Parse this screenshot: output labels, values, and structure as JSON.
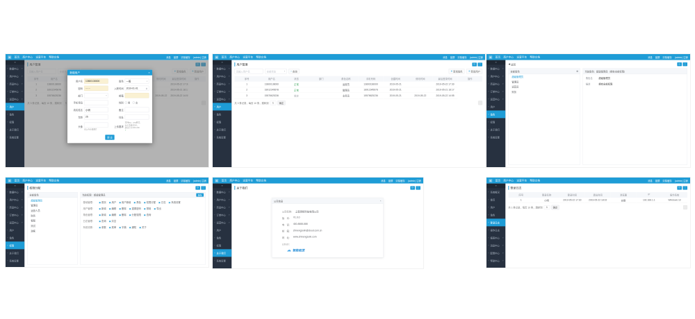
{
  "colors": {
    "accent": "#1e9cd6",
    "sidebar_bg": "#273140",
    "status_ok": "#3aa35a",
    "status_off": "#a0a4aa"
  },
  "icons": {
    "menu": "▤",
    "collapse": "≡",
    "bullet": "▪",
    "caret": "▸",
    "dropdown": "▾",
    "search": "⌕",
    "plus": "⊕",
    "refresh": "⟳",
    "fullscreen": "⛶",
    "edit": "✎",
    "delete": "⊘",
    "close": "×",
    "back": "◀",
    "grid": "▦",
    "calendar": "▦",
    "check": "✓",
    "checkbox": "▣",
    "cloud": "☁"
  },
  "navbar": {
    "left": [
      "首页",
      "商户中心",
      "运营平台",
      "帮助文档"
    ],
    "right": [
      "消息",
      "锁屏",
      "清除缓存",
      "(admin) 注销"
    ]
  },
  "sidebars": {
    "main": [
      {
        "label": "数据中心",
        "group": true
      },
      {
        "label": "用户中心",
        "group": true
      },
      {
        "label": "商品中心",
        "group": true
      },
      {
        "label": "订单中心",
        "group": true
      },
      {
        "label": "运营中心",
        "group": true
      },
      {
        "label": "用户"
      },
      {
        "label": "角色"
      },
      {
        "label": "权限"
      },
      {
        "label": "关于我们"
      },
      {
        "label": "系统设置"
      }
    ],
    "log": [
      {
        "label": "系统概况"
      },
      {
        "label": "首页"
      },
      {
        "label": "用户"
      },
      {
        "label": "角色"
      },
      {
        "label": "登录日志"
      },
      {
        "label": "操作日志"
      },
      {
        "label": "报表中心",
        "group": true
      },
      {
        "label": "消息中心",
        "group": true
      },
      {
        "label": "配置中心",
        "group": true
      },
      {
        "label": "帮助中心",
        "group": true
      }
    ]
  },
  "user_page": {
    "title": "用户管理",
    "search_placeholder": "请输入用户名",
    "status_select": "全部状态",
    "search_button": "查询",
    "add_buttons": [
      "新增角色",
      "新增用户"
    ],
    "table": {
      "columns": [
        "序号",
        "用户名",
        "状态",
        "部门",
        "角色名称",
        "手机号码",
        "创建时间",
        "修改时间",
        "最后登录时间",
        "操作"
      ],
      "rows": [
        {
          "cells": [
            "1",
            "13800138000",
            "正常",
            "",
            "运营员",
            "13800138000",
            "2019-05-21",
            "",
            "2019-05-22 17:30"
          ],
          "status": "ok",
          "actions": true
        },
        {
          "cells": [
            "2",
            "18912345678",
            "正常",
            "",
            "管理员",
            "18912345678",
            "2019-05-21",
            "",
            "2019-05-21 18:17"
          ],
          "status": "ok",
          "actions": true
        },
        {
          "cells": [
            "3",
            "15578625236",
            "锁定",
            "",
            "业务员",
            "15578625236",
            "2019-05-21",
            "2019-05-22",
            "2019-05-22 14:55"
          ],
          "status": "off",
          "actions": false
        }
      ]
    },
    "pagination": {
      "summary": "共 3 条记录，每页 10 条，跳转到",
      "jump": "1",
      "confirm": "确定"
    }
  },
  "panels": [
    {
      "id": "p1",
      "sidebar": "main",
      "active": 5,
      "type": "user",
      "with_modal": true,
      "modal": {
        "title": "新增用户",
        "fields_left": [
          {
            "label": "用户名",
            "type": "input",
            "value": "13800138000",
            "autofill": true
          },
          {
            "label": "密码",
            "type": "input",
            "value": "······",
            "autofill": true
          },
          {
            "label": "部门",
            "type": "select",
            "value": ""
          },
          {
            "label": "手机号码",
            "type": "input",
            "value": ""
          },
          {
            "label": "真实姓名",
            "type": "input",
            "value": "小明"
          },
          {
            "label": "年龄",
            "type": "input",
            "value": "25"
          },
          {
            "label": "头像",
            "type": "upload",
            "hint": "请上传头像图片"
          }
        ],
        "fields_right": [
          {
            "label": "角色",
            "type": "select",
            "value": "一般"
          },
          {
            "label": "入职时间",
            "type": "date",
            "value": "2019-01-01"
          },
          {
            "label": "邮箱",
            "type": "input",
            "value": "",
            "autofill": true
          },
          {
            "label": "性别",
            "type": "radio",
            "options": [
              "男",
              "女"
            ]
          },
          {
            "label": "备注",
            "type": "input",
            "value": ""
          },
          {
            "label": "住址",
            "type": "input",
            "value": ""
          },
          {
            "label": "上传要求",
            "type": "note",
            "lines": [
              "支持jpg、png格式，",
              "大小不超过2M，",
              "建议尺寸200×200"
            ]
          }
        ],
        "submit": "提 交"
      }
    },
    {
      "id": "p2",
      "sidebar": "main",
      "active": 5,
      "type": "user"
    },
    {
      "id": "p3",
      "sidebar": "main",
      "active": 6,
      "type": "role",
      "back": "返回",
      "left": {
        "header": "全部角色",
        "items": [
          "超级管理员",
          "管理员",
          "运营员",
          "财务"
        ],
        "active": 0
      },
      "right": {
        "header": "当前角色：超级管理员（拥有全部权限）",
        "rows": [
          [
            "角色名",
            "超级管理员"
          ],
          [
            "描述",
            "拥有全部权限"
          ]
        ]
      }
    },
    {
      "id": "p4",
      "sidebar": "main",
      "active": 7,
      "type": "perm",
      "title": "权限分配",
      "left": {
        "header": "全部角色",
        "items": [
          "超级管理员",
          "管理员",
          "运营人员",
          "财务",
          "客服",
          "测试",
          "游客"
        ],
        "active": 0
      },
      "right": {
        "header": "当前权限：超级管理员",
        "save": "保存",
        "groups": [
          {
            "label": "基础管理",
            "perms": [
              "首页",
              "用户",
              "用户新增",
              "角色",
              "权限分配",
              "日志",
              "系统设置"
            ]
          },
          {
            "label": "用户管理",
            "perms": [
              "新增",
              "编辑",
              "删除",
              "重置密码",
              "禁用",
              "导出"
            ]
          },
          {
            "label": "角色管理",
            "perms": [
              "新增",
              "编辑",
              "删除",
              "分配权限",
              "查询"
            ]
          },
          {
            "label": "日志管理",
            "perms": [
              "查询",
              "清空"
            ]
          },
          {
            "label": "系统设置",
            "perms": [
              "参数",
              "菜单",
              "字典",
              "通知",
              "关于"
            ]
          }
        ]
      }
    },
    {
      "id": "p5",
      "sidebar": "main",
      "active": 8,
      "type": "about",
      "title": "关于我们",
      "card": {
        "header": "公司信息",
        "lines": [
          [
            "公司名称：",
            "云智网络科技有限公司"
          ],
          [
            "版　本：",
            "V1.0.0"
          ],
          [
            "电　话：",
            "400-8888-888"
          ],
          [
            "邮　箱：",
            "zhinengzulin@cloud.com.cn"
          ],
          [
            "网　址：",
            "www.zhinengzulin.com"
          ],
          [
            "LOGO：",
            ""
          ]
        ],
        "logo_text": "智能租赁"
      }
    },
    {
      "id": "p6",
      "sidebar": "log",
      "active": 4,
      "type": "log",
      "title": "登录日志",
      "table": {
        "columns": [
          "序号",
          "登录名称",
          "登录时间",
          "退出时间",
          "浏览器",
          "IP",
          "操作系统"
        ],
        "rows": [
          {
            "cells": [
              "1",
              "小明",
              "2019-05-22 17:30",
              "2019-05-22 18:02",
              "谷歌",
              "192.168.1.1",
              "Windows 10"
            ]
          }
        ]
      },
      "pagination": {
        "summary": "共 1 条记录，每页 10 条，跳转到",
        "jump": "1",
        "confirm": "确定"
      }
    }
  ]
}
